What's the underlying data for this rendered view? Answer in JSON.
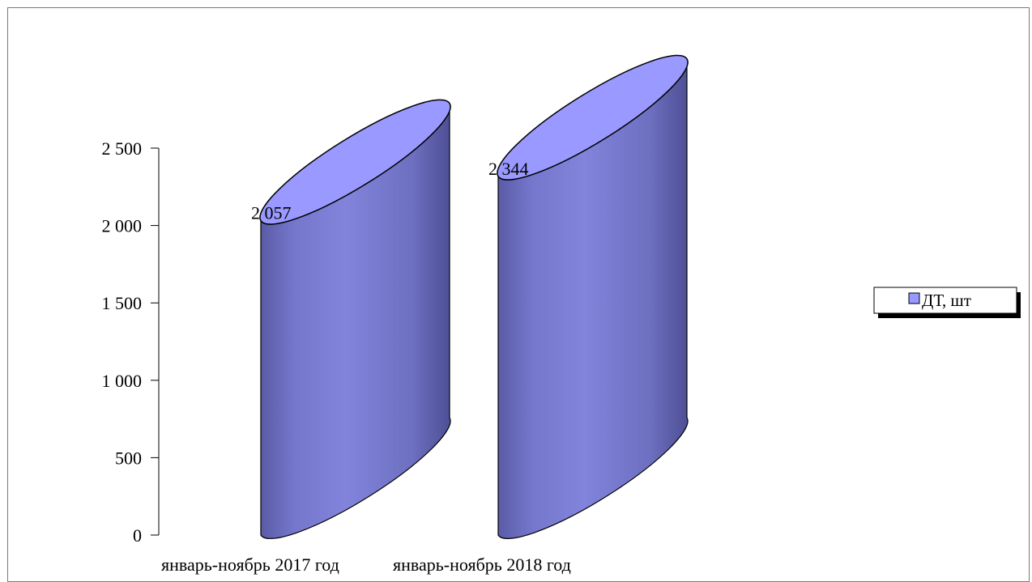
{
  "chart_data": {
    "type": "bar",
    "style": "3d-cylinder",
    "categories": [
      "январь-ноябрь 2017 год",
      "январь-ноябрь 2018 год"
    ],
    "series": [
      {
        "name": "ДТ, шт",
        "values": [
          2057,
          2344
        ]
      }
    ],
    "data_labels": [
      "2 057",
      "2 344"
    ],
    "y_ticks": [
      0,
      500,
      1000,
      1500,
      2000,
      2500
    ],
    "y_tick_labels": [
      "0",
      "500",
      "1 000",
      "1 500",
      "2 000",
      "2 500"
    ],
    "ylim": [
      0,
      2500
    ],
    "grid": false,
    "legend_position": "right",
    "title": "",
    "xlabel": "",
    "ylabel": ""
  },
  "colors": {
    "cylinder_top": "#9999ff",
    "cylinder_side": "#7d7fd6",
    "cylinder_dark": "#4e4f95",
    "legend_swatch": "#9999ff"
  }
}
